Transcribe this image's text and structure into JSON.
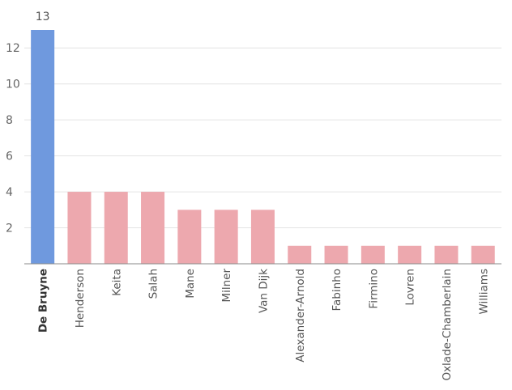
{
  "chart_data": {
    "type": "bar",
    "title": "",
    "xlabel": "",
    "ylabel": "",
    "categories": [
      "De Bruyne",
      "Henderson",
      "Keita",
      "Salah",
      "Mane",
      "Milner",
      "Van Dijk",
      "Alexander-Arnold",
      "Fabinho",
      "Firmino",
      "Lovren",
      "Oxlade-Chamberlain",
      "Williams"
    ],
    "values": [
      13,
      4,
      4,
      4,
      3,
      3,
      3,
      1,
      1,
      1,
      1,
      1,
      1
    ],
    "highlight_index": 0,
    "data_labels": [
      {
        "index": 0,
        "text": "13"
      }
    ],
    "ylim": [
      0,
      13
    ],
    "yticks": [
      2,
      4,
      6,
      8,
      10,
      12
    ],
    "grid": true,
    "legend": "none",
    "colors": {
      "highlight": "#6f99de",
      "default": "#eda8ae",
      "grid": "#e4e4e4",
      "axis": "#8a8a8a"
    }
  }
}
